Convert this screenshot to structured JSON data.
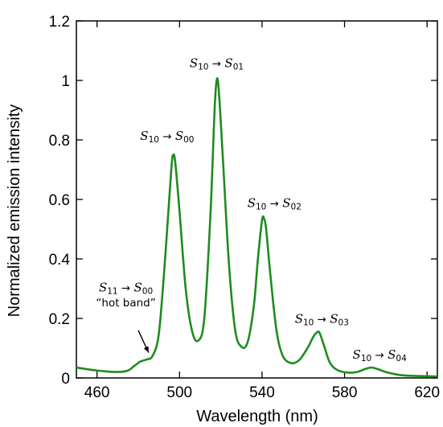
{
  "chart_data": {
    "type": "line",
    "xlabel": "Wavelength (nm)",
    "ylabel": "Normalized emission intensity",
    "xlim": [
      450,
      625
    ],
    "ylim": [
      0,
      1.2
    ],
    "xticks": [
      "460",
      "500",
      "540",
      "580",
      "620"
    ],
    "xtick_values": [
      460,
      500,
      540,
      580,
      620
    ],
    "yticks": [
      "0",
      "0.2",
      "0.4",
      "0.6",
      "0.8",
      "1",
      "1.2"
    ],
    "ytick_values": [
      0,
      0.2,
      0.4,
      0.6,
      0.8,
      1.0,
      1.2
    ],
    "grid": false,
    "series": [
      {
        "color": "#1e8c1e",
        "x": [
          450,
          460,
          470,
          475,
          478,
          481,
          484,
          487,
          490,
          493,
          496,
          497,
          498,
          500,
          503,
          506,
          509,
          512,
          515,
          517,
          518,
          519,
          521,
          524,
          527,
          530,
          533,
          536,
          538,
          540,
          541,
          542,
          544,
          547,
          550,
          554,
          558,
          562,
          565,
          567,
          568,
          570,
          573,
          577,
          582,
          586,
          590,
          593,
          596,
          600,
          605,
          610,
          625
        ],
        "y": [
          0.035,
          0.025,
          0.02,
          0.025,
          0.04,
          0.055,
          0.062,
          0.075,
          0.15,
          0.4,
          0.7,
          0.75,
          0.72,
          0.56,
          0.3,
          0.16,
          0.125,
          0.2,
          0.55,
          0.9,
          1.0,
          0.97,
          0.74,
          0.38,
          0.16,
          0.105,
          0.12,
          0.24,
          0.4,
          0.53,
          0.535,
          0.5,
          0.35,
          0.16,
          0.075,
          0.05,
          0.06,
          0.1,
          0.14,
          0.155,
          0.15,
          0.11,
          0.05,
          0.025,
          0.018,
          0.02,
          0.03,
          0.035,
          0.03,
          0.02,
          0.012,
          0.008,
          0.005
        ]
      }
    ],
    "annotations": [
      {
        "text_parts": {
          "a": "S",
          "a_sub": "11",
          "arrow": "→",
          "b": "S",
          "b_sub": "00"
        },
        "x": 474,
        "y": 0.29
      },
      {
        "text": "“hot band”",
        "x": 474,
        "y": 0.24
      },
      {
        "text_parts": {
          "a": "S",
          "a_sub": "10",
          "arrow": "→",
          "b": "S",
          "b_sub": "00"
        },
        "x": 494,
        "y": 0.8
      },
      {
        "text_parts": {
          "a": "S",
          "a_sub": "10",
          "arrow": "→",
          "b": "S",
          "b_sub": "01"
        },
        "x": 518,
        "y": 1.045
      },
      {
        "text_parts": {
          "a": "S",
          "a_sub": "10",
          "arrow": "→",
          "b": "S",
          "b_sub": "02"
        },
        "x": 546,
        "y": 0.575
      },
      {
        "text_parts": {
          "a": "S",
          "a_sub": "10",
          "arrow": "→",
          "b": "S",
          "b_sub": "03"
        },
        "x": 569,
        "y": 0.185
      },
      {
        "text_parts": {
          "a": "S",
          "a_sub": "10",
          "arrow": "→",
          "b": "S",
          "b_sub": "04"
        },
        "x": 597,
        "y": 0.065
      }
    ],
    "arrow": {
      "from": [
        480,
        0.16
      ],
      "to": [
        485,
        0.085
      ]
    }
  }
}
